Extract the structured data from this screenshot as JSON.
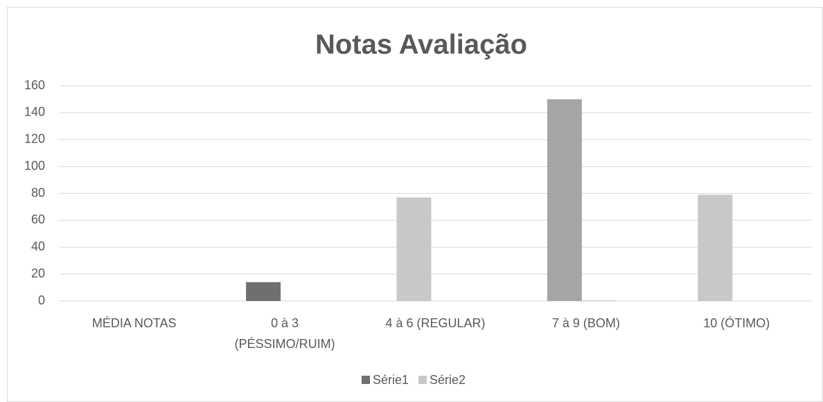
{
  "chart_data": {
    "type": "bar",
    "title": "Notas Avaliação",
    "categories": [
      "MÉDIA NOTAS",
      "0 à 3 (PÉSSIMO/RUIM)",
      "4 à 6 (REGULAR)",
      "7 à 9 (BOM)",
      "10 (ÓTIMO)"
    ],
    "series": [
      {
        "name": "Série1",
        "color": "#6f6f6f",
        "colors": [
          "#6f6f6f",
          "#6f6f6f",
          "#c8c8c8",
          "#a5a5a5",
          "#c8c8c8"
        ],
        "values": [
          0,
          14,
          77,
          150,
          79
        ]
      },
      {
        "name": "Série2",
        "color": "#c8c8c8",
        "values": [
          0,
          0,
          0,
          0.5,
          0
        ]
      }
    ],
    "ylim": [
      0,
      160
    ],
    "yticks": [
      0,
      20,
      40,
      60,
      80,
      100,
      120,
      140,
      160
    ],
    "grid": true,
    "legend": "bottom"
  }
}
